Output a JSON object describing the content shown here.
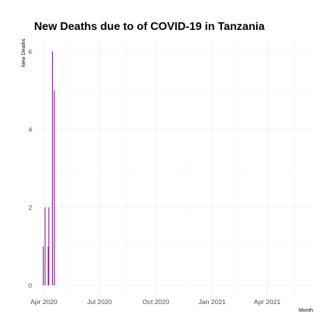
{
  "chart_data": {
    "type": "bar",
    "title": "New Deaths due to of COVID-19 in Tanzania",
    "xlabel": "Month",
    "ylabel": "New Deaths",
    "x_tick_labels": [
      "Apr 2020",
      "Jul 2020",
      "Oct 2020",
      "Jan 2021",
      "Apr 2021"
    ],
    "x_tick_dates": [
      "2020-04-01",
      "2020-07-01",
      "2020-10-01",
      "2021-01-01",
      "2021-04-01"
    ],
    "y_tick_labels": [
      "0",
      "2",
      "4",
      "6"
    ],
    "y_ticks": [
      0,
      2,
      4,
      6
    ],
    "xlim": [
      "2020-03-16",
      "2021-06-15"
    ],
    "ylim": [
      0,
      6
    ],
    "grid": true,
    "bar_color": "#8b1a8b",
    "series": [
      {
        "x": [
          "2020-03-31",
          "2020-04-03",
          "2020-04-08",
          "2020-04-09",
          "2020-04-15",
          "2020-04-18"
        ],
        "values": [
          1,
          2,
          1,
          2,
          6,
          5
        ]
      }
    ]
  }
}
